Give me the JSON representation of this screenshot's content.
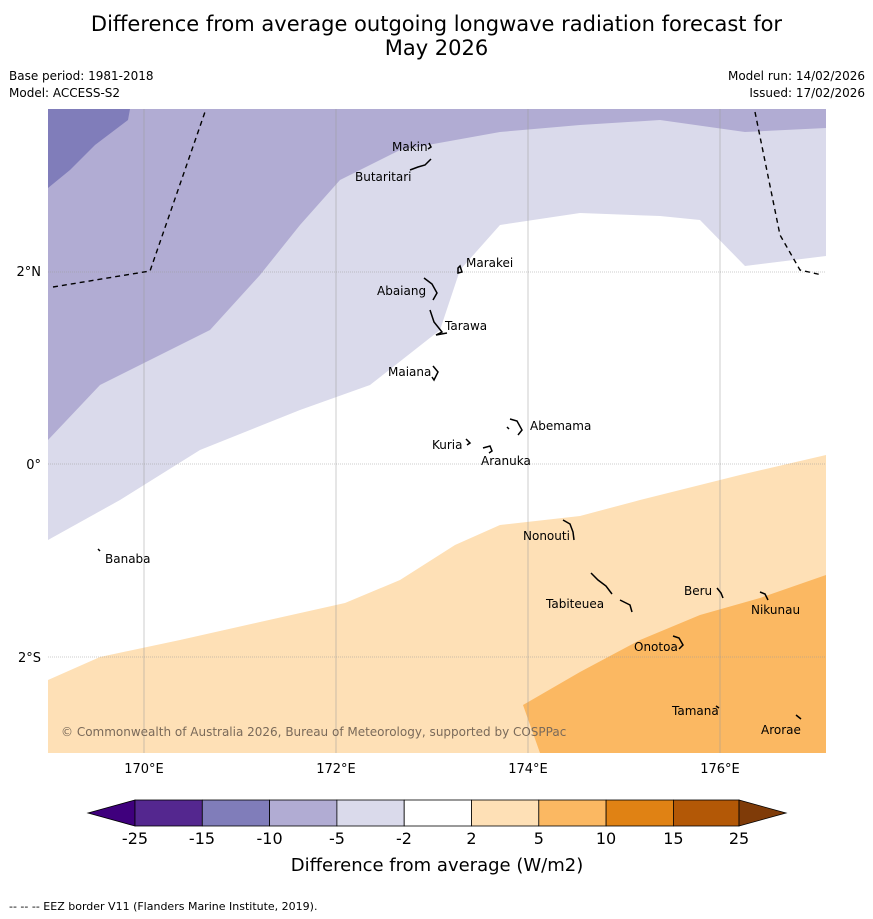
{
  "title_line1": "Difference from average outgoing longwave radiation forecast for",
  "title_line2": "May 2026",
  "base_period": "Base period: 1981-2018",
  "model": "Model: ACCESS-S2",
  "model_run": "Model run: 14/02/2026",
  "issued": "Issued: 17/02/2026",
  "copyright": "© Commonwealth of Australia 2026, Bureau of Meteorology, supported by COSPPac",
  "footer": "--  --  -- EEZ border V11 (Flanders Marine Institute, 2019).",
  "axes": {
    "x_ticks": [
      "170°E",
      "172°E",
      "174°E",
      "176°E"
    ],
    "y_ticks": [
      "2°N",
      "0°",
      "2°S"
    ]
  },
  "places": {
    "makin": "Makin",
    "butaritari": "Butaritari",
    "marakei": "Marakei",
    "abaiang": "Abaiang",
    "tarawa": "Tarawa",
    "maiana": "Maiana",
    "abemama": "Abemama",
    "kuria": "Kuria",
    "aranuka": "Aranuka",
    "banaba": "Banaba",
    "nonouti": "Nonouti",
    "tabiteuea": "Tabiteuea",
    "beru": "Beru",
    "nikunau": "Nikunau",
    "onotoa": "Onotoa",
    "tamana": "Tamana",
    "arorae": "Arorae"
  },
  "colorbar": {
    "label": "Difference from average (W/m2)",
    "ticks": [
      "-25",
      "-15",
      "-10",
      "-5",
      "-2",
      "2",
      "5",
      "10",
      "15",
      "25"
    ],
    "colors": [
      "#3f007d",
      "#54278f",
      "#807dba",
      "#b1acd3",
      "#dadaeb",
      "#ffffff",
      "#fee0b6",
      "#fbb862",
      "#e08214",
      "#b35806",
      "#7f3b08"
    ]
  }
}
